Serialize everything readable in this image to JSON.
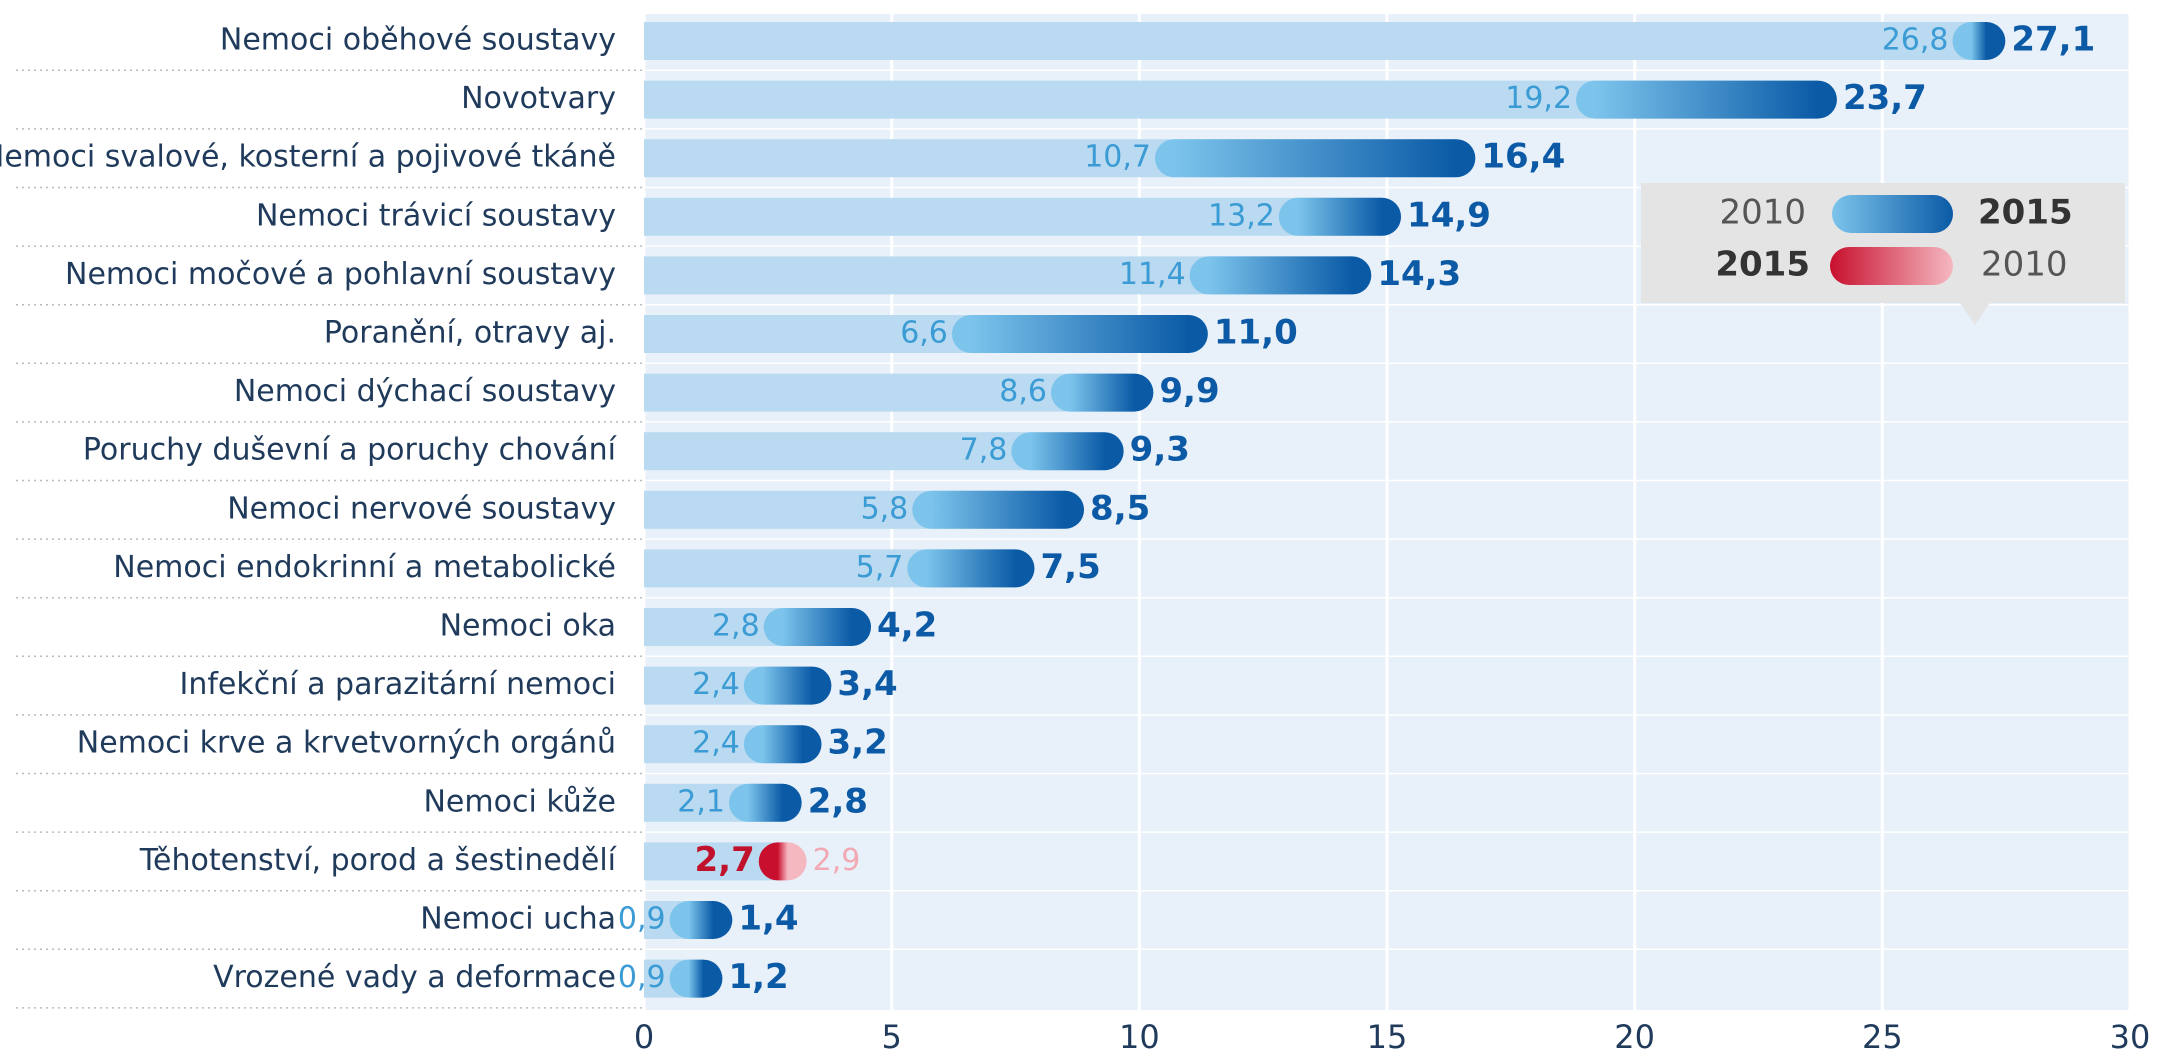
{
  "chart_data": {
    "type": "dumbbell",
    "categories": [
      "Nemoci oběhové soustavy",
      "Novotvary",
      "Nemoci svalové, kosterní a pojivové tkáně",
      "Nemoci trávicí soustavy",
      "Nemoci močové a pohlavní soustavy",
      "Poranění, otravy aj.",
      "Nemoci dýchací soustavy",
      "Poruchy duševní a poruchy chování",
      "Nemoci nervové soustavy",
      "Nemoci endokrinní a metabolické",
      "Nemoci oka",
      "Infekční a parazitární nemoci",
      "Nemoci krve a krvetvorných orgánů",
      "Nemoci kůže",
      "Těhotenství, porod a šestinedělí",
      "Nemoci ucha",
      "Vrozené vady a deformace"
    ],
    "series": [
      {
        "name": "2010",
        "color": "#7cc4ec",
        "values": [
          26.8,
          19.2,
          10.7,
          13.2,
          11.4,
          6.6,
          8.6,
          7.8,
          5.8,
          5.7,
          2.8,
          2.4,
          2.4,
          2.1,
          2.9,
          0.9,
          0.9
        ],
        "value_labels": [
          "26,8",
          "19,2",
          "10,7",
          "13,2",
          "11,4",
          "6,6",
          "8,6",
          "7,8",
          "5,8",
          "5,7",
          "2,8",
          "2,4",
          "2,4",
          "2,1",
          "2,9",
          "0,9",
          "0,9"
        ]
      },
      {
        "name": "2015",
        "color": "#0a5aa6",
        "values": [
          27.1,
          23.7,
          16.4,
          14.9,
          14.3,
          11.0,
          9.9,
          9.3,
          8.5,
          7.5,
          4.2,
          3.4,
          3.2,
          2.8,
          2.7,
          1.4,
          1.2
        ],
        "value_labels": [
          "27,1",
          "23,7",
          "16,4",
          "14,9",
          "14,3",
          "11,0",
          "9,9",
          "9,3",
          "8,5",
          "7,5",
          "4,2",
          "3,4",
          "3,2",
          "2,8",
          "2,7",
          "1,4",
          "1,2"
        ]
      }
    ],
    "decrease_colors": [
      "#f5b8c1",
      "#c8102e"
    ],
    "track_color": "#b9daf0",
    "xlim": [
      0,
      30
    ],
    "xticks": [
      0,
      5,
      10,
      15,
      20,
      25,
      30
    ],
    "grid": true
  }
}
